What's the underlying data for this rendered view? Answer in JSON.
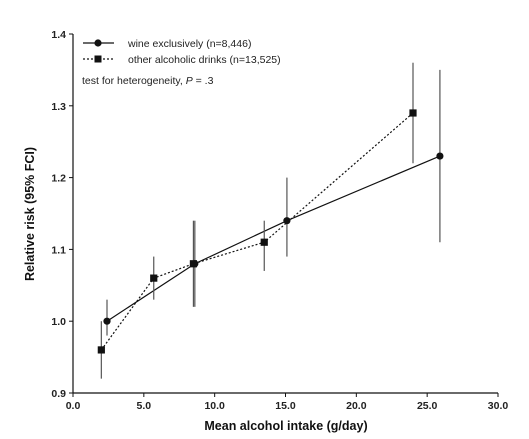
{
  "chart_data": {
    "type": "line",
    "xlabel": "Mean alcohol intake (g/day)",
    "ylabel": "Relative risk (95% FCI)",
    "xlim": [
      0,
      30
    ],
    "ylim": [
      0.9,
      1.4
    ],
    "x_ticks": [
      "0.0",
      "5.0",
      "10.0",
      "15.0",
      "20.0",
      "25.0",
      "30.0"
    ],
    "y_ticks": [
      "0.9",
      "1.0",
      "1.1",
      "1.2",
      "1.3",
      "1.4"
    ],
    "grid": false,
    "legend_position": "top-left",
    "series": [
      {
        "name": "wine exclusively (n=8,446)",
        "line_style": "solid",
        "marker": "circle",
        "color": "#111111",
        "points": [
          {
            "x": 2.4,
            "y": 1.0,
            "lo": 0.98,
            "hi": 1.03
          },
          {
            "x": 8.6,
            "y": 1.08,
            "lo": 1.02,
            "hi": 1.14
          },
          {
            "x": 15.1,
            "y": 1.14,
            "lo": 1.09,
            "hi": 1.2
          },
          {
            "x": 25.9,
            "y": 1.23,
            "lo": 1.11,
            "hi": 1.35
          }
        ]
      },
      {
        "name": "other alcoholic drinks (n=13,525)",
        "line_style": "dotted",
        "marker": "square",
        "color": "#111111",
        "points": [
          {
            "x": 2.0,
            "y": 0.96,
            "lo": 0.92,
            "hi": 1.0
          },
          {
            "x": 5.7,
            "y": 1.06,
            "lo": 1.03,
            "hi": 1.09
          },
          {
            "x": 8.5,
            "y": 1.08,
            "lo": 1.02,
            "hi": 1.14
          },
          {
            "x": 13.5,
            "y": 1.11,
            "lo": 1.07,
            "hi": 1.14
          },
          {
            "x": 24.0,
            "y": 1.29,
            "lo": 1.22,
            "hi": 1.36
          }
        ]
      }
    ],
    "annotation": {
      "prefix": "test for heterogeneity, ",
      "p_label": "P",
      "suffix": " = .3"
    }
  }
}
